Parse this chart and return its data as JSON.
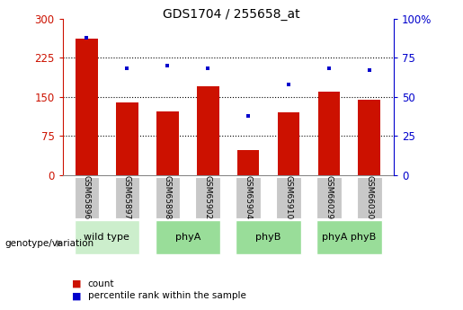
{
  "title": "GDS1704 / 255658_at",
  "samples": [
    "GSM65896",
    "GSM65897",
    "GSM65898",
    "GSM65902",
    "GSM65904",
    "GSM65910",
    "GSM66029",
    "GSM66030"
  ],
  "counts": [
    262,
    140,
    122,
    170,
    48,
    120,
    160,
    145
  ],
  "percentile_ranks": [
    88,
    68,
    70,
    68,
    38,
    58,
    68,
    67
  ],
  "bar_color": "#cc1100",
  "marker_color": "#0000cc",
  "left_axis_color": "#cc1100",
  "right_axis_color": "#0000cc",
  "ylim_left": [
    0,
    300
  ],
  "ylim_right": [
    0,
    100
  ],
  "yticks_left": [
    0,
    75,
    150,
    225,
    300
  ],
  "yticks_right": [
    0,
    25,
    50,
    75,
    100
  ],
  "yticklabels_right": [
    "0",
    "25",
    "50",
    "75",
    "100%"
  ],
  "background_color": "#ffffff",
  "sample_box_color": "#c8c8c8",
  "bar_width": 0.55,
  "group_data": [
    {
      "label": "wild type",
      "start": 0,
      "end": 1,
      "color": "#cceecc"
    },
    {
      "label": "phyA",
      "start": 2,
      "end": 3,
      "color": "#99dd99"
    },
    {
      "label": "phyB",
      "start": 4,
      "end": 5,
      "color": "#99dd99"
    },
    {
      "label": "phyA phyB",
      "start": 6,
      "end": 7,
      "color": "#99dd99"
    }
  ],
  "legend_count": "count",
  "legend_pct": "percentile rank within the sample"
}
